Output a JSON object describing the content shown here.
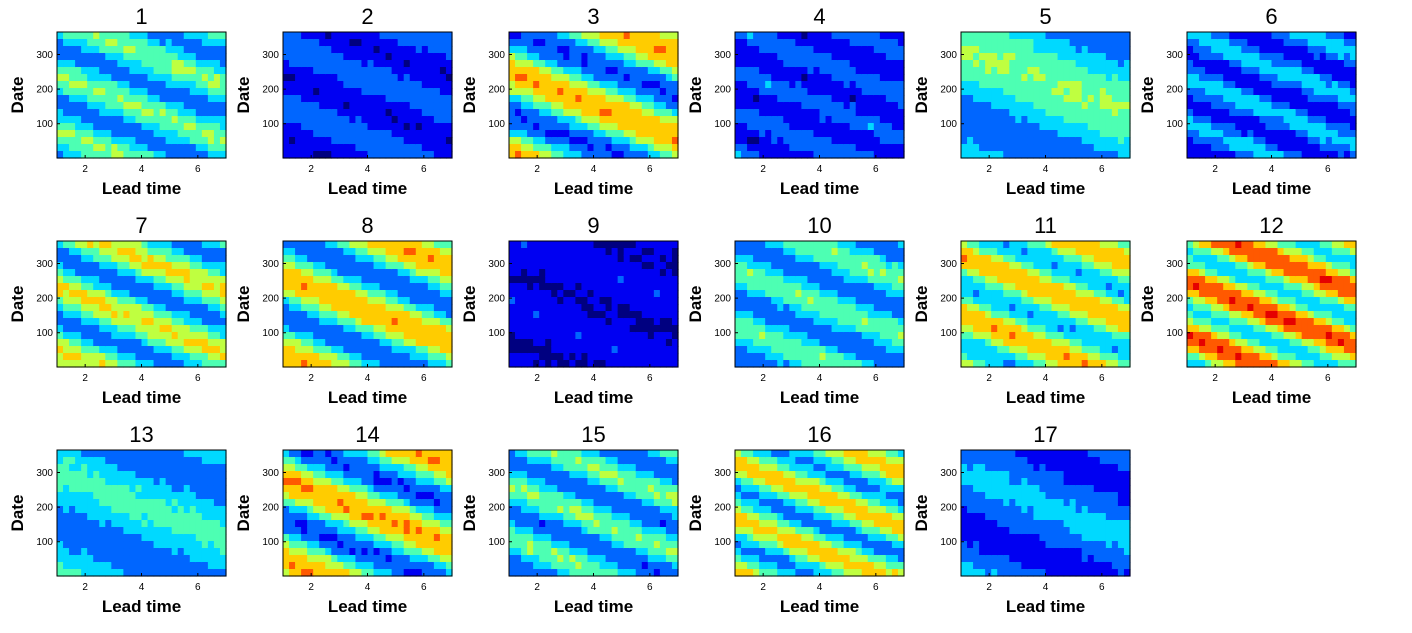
{
  "chart_data": {
    "type": "heatmap",
    "panel_count": 17,
    "layout": "6 columns x 3 rows",
    "colormap": "jet",
    "shared": {
      "xlabel": "Lead time",
      "ylabel": "Date",
      "xlim": [
        1,
        7
      ],
      "ylim": [
        1,
        365
      ],
      "xticks": [
        2,
        4,
        6
      ],
      "yticks": [
        100,
        200,
        300
      ],
      "grid": false
    },
    "panels": [
      {
        "title": "1",
        "pattern": "diagonal bands descending with lead time; moderate intensity (cyan/light blue)"
      },
      {
        "title": "2",
        "pattern": "mostly low (dark blue); faint cyan band at upper right"
      },
      {
        "title": "3",
        "pattern": "strong yellow diagonal band from date ~250 at lead 1 to ~80 at lead 7"
      },
      {
        "title": "4",
        "pattern": "mostly low (dark blue) horizontal streaks"
      },
      {
        "title": "5",
        "pattern": "broad cyan region upper left to right; low elsewhere"
      },
      {
        "title": "6",
        "pattern": "low intensity diagonal streaks"
      },
      {
        "title": "7",
        "pattern": "cyan/yellow diagonal bands descending with lead time"
      },
      {
        "title": "8",
        "pattern": "yellow diagonal band from date ~260 at lead 1 to ~100 at lead 7"
      },
      {
        "title": "9",
        "pattern": "uniformly low (dark blue)"
      },
      {
        "title": "10",
        "pattern": "moderate cyan diagonal bands"
      },
      {
        "title": "11",
        "pattern": "yellow/cyan diagonal bands at top and bottom"
      },
      {
        "title": "12",
        "pattern": "strong yellow/orange diagonal bands; high intensity"
      },
      {
        "title": "13",
        "pattern": "moderate cyan upper band, blue lower region"
      },
      {
        "title": "14",
        "pattern": "orange/yellow diagonal band from date ~280 at lead 1 to ~100 at lead 7"
      },
      {
        "title": "15",
        "pattern": "cyan and dark blue diagonal bands"
      },
      {
        "title": "16",
        "pattern": "cyan/yellow diagonal bands descending with lead time"
      },
      {
        "title": "17",
        "pattern": "low intensity, smooth; light cyan patch near top center"
      }
    ]
  }
}
